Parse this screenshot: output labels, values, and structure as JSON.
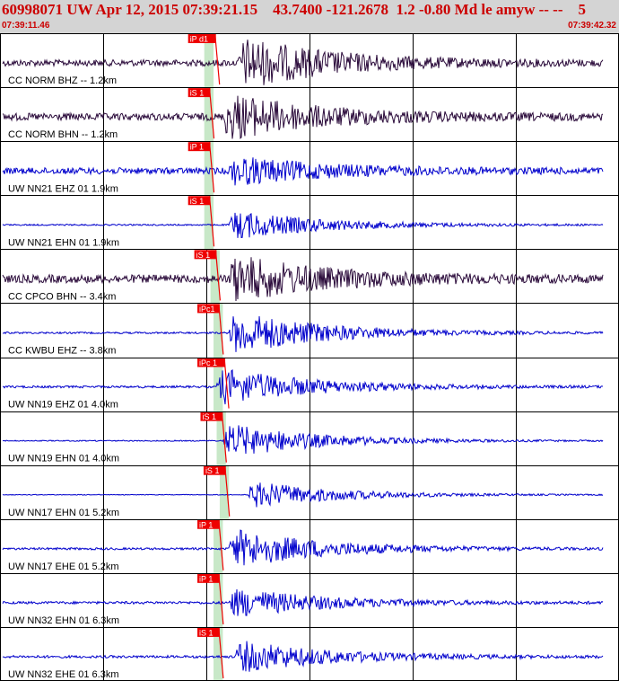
{
  "header": {
    "title": "60998071 UW Apr 12, 2015 07:39:21.15    43.7400 -121.2678  1.2 -0.80 Md le amyw -- --    5",
    "start_time": "07:39:11.46",
    "end_time": "07:39:42.32"
  },
  "colors": {
    "header_bg": "#d4d4d4",
    "header_text": "#cc0000",
    "trace_blue": "#0000cc",
    "trace_dark": "#2a0a3a",
    "pick_red": "#ee0000",
    "window_green": "#c8e8c8",
    "grid": "#000000"
  },
  "traces": [
    {
      "label": "CC NORM BHZ -- 1.2km",
      "color": "dark",
      "onset": 0.385,
      "amp": 1.0,
      "noise": 0.35,
      "pick": {
        "text": "iP d1"
      },
      "green": [
        0.33,
        0.345
      ]
    },
    {
      "label": "CC NORM BHN -- 1.2km",
      "color": "dark",
      "onset": 0.36,
      "amp": 0.9,
      "noise": 0.4,
      "pick": {
        "text": "iS 1"
      },
      "green": [
        0.33,
        0.345
      ]
    },
    {
      "label": "UW NN21 EHZ 01 1.9km",
      "color": "blue",
      "onset": 0.37,
      "amp": 0.55,
      "noise": 0.35,
      "pick": {
        "text": "iP 1"
      },
      "green": [
        0.33,
        0.345
      ]
    },
    {
      "label": "UW NN21 EHN 01 1.9km",
      "color": "blue",
      "onset": 0.37,
      "amp": 0.6,
      "noise": 0.08,
      "pick": {
        "text": "iS 1"
      },
      "green": [
        0.33,
        0.345
      ]
    },
    {
      "label": "CC CPCO BHN -- 3.4km",
      "color": "dark",
      "onset": 0.37,
      "amp": 0.9,
      "noise": 0.45,
      "pick": {
        "text": "iS 1"
      },
      "green": [
        0.34,
        0.355
      ]
    },
    {
      "label": "CC KWBU EHZ -- 3.8km",
      "color": "blue",
      "onset": 0.37,
      "amp": 0.9,
      "noise": 0.1,
      "pick": {
        "text": "iPc1"
      },
      "green": [
        0.345,
        0.36
      ]
    },
    {
      "label": "UW NN19 EHZ 01 4.0km",
      "color": "blue",
      "onset": 0.35,
      "amp": 0.75,
      "noise": 0.12,
      "pick": {
        "text": "iPc 1"
      },
      "green": [
        0.345,
        0.36
      ]
    },
    {
      "label": "UW NN19 EHN 01 4.0km",
      "color": "blue",
      "onset": 0.36,
      "amp": 0.7,
      "noise": 0.06,
      "pick": {
        "text": "iS 1"
      },
      "green": [
        0.35,
        0.365
      ]
    },
    {
      "label": "UW NN17 EHN 01 5.2km",
      "color": "blue",
      "onset": 0.4,
      "amp": 0.55,
      "noise": 0.04,
      "pick": {
        "text": "iS 1"
      },
      "green": [
        0.355,
        0.37
      ]
    },
    {
      "label": "UW NN17 EHE 01 5.2km",
      "color": "blue",
      "onset": 0.37,
      "amp": 0.8,
      "noise": 0.12,
      "pick": {
        "text": "iP 1"
      },
      "green": [
        0.345,
        0.36
      ]
    },
    {
      "label": "UW NN32 EHN 01 6.3km",
      "color": "blue",
      "onset": 0.37,
      "amp": 0.6,
      "noise": 0.14,
      "pick": {
        "text": "iP 1"
      },
      "green": [
        0.345,
        0.36
      ]
    },
    {
      "label": "UW NN32 EHE 01 6.3km",
      "color": "blue",
      "onset": 0.38,
      "amp": 0.65,
      "noise": 0.14,
      "pick": {
        "text": "iS 1"
      },
      "green": [
        0.345,
        0.36
      ]
    }
  ]
}
